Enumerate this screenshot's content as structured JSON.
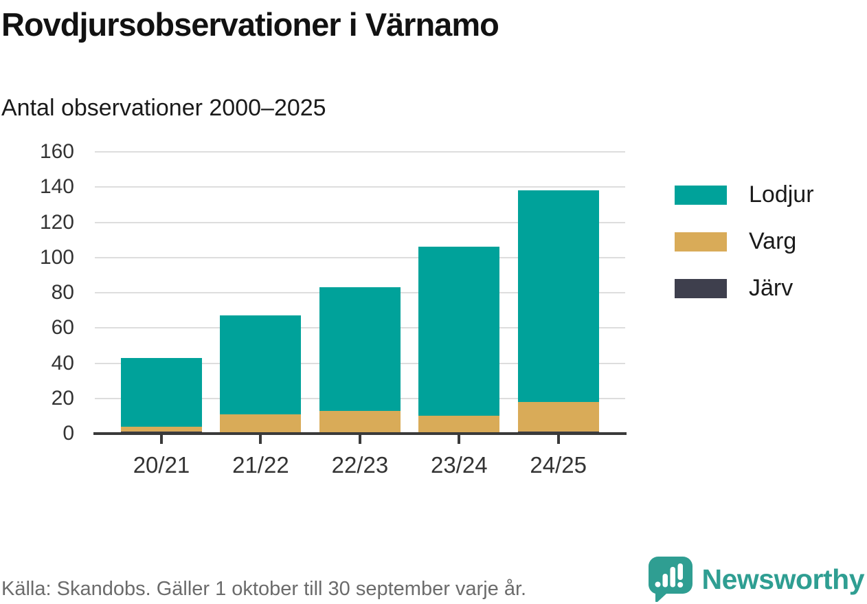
{
  "title": "Rovdjursobservationer i Värnamo",
  "subtitle": "Antal observationer 2000–2025",
  "footer": {
    "source": "Källa: Skandobs. Gäller 1 oktober till 30 september varje år."
  },
  "branding": {
    "name": "Newsworthy",
    "icon": "newsworthy-logo-icon",
    "color": "#2f9e92"
  },
  "chart_data": {
    "type": "bar",
    "stacked": true,
    "title": "Rovdjursobservationer i Värnamo",
    "subtitle": "Antal observationer 2000–2025",
    "categories": [
      "20/21",
      "21/22",
      "22/23",
      "23/24",
      "24/25"
    ],
    "series": [
      {
        "name": "Lodjur",
        "color": "#00a29a",
        "values": [
          39,
          56,
          70,
          96,
          120
        ]
      },
      {
        "name": "Varg",
        "color": "#d9ab58",
        "values": [
          3,
          11,
          13,
          10,
          17
        ]
      },
      {
        "name": "Järv",
        "color": "#3e3f4d",
        "values": [
          1,
          0,
          0,
          0,
          1
        ]
      }
    ],
    "totals": [
      43,
      67,
      83,
      106,
      138
    ],
    "stack_order_bottom_to_top": [
      "Järv",
      "Varg",
      "Lodjur"
    ],
    "xlabel": "",
    "ylabel": "",
    "ylim": [
      0,
      160
    ],
    "ytick_step": 20,
    "grid": "horizontal",
    "gridline_color": "#dddddd",
    "axis_color": "#3a3a3a",
    "legend_position": "right"
  }
}
